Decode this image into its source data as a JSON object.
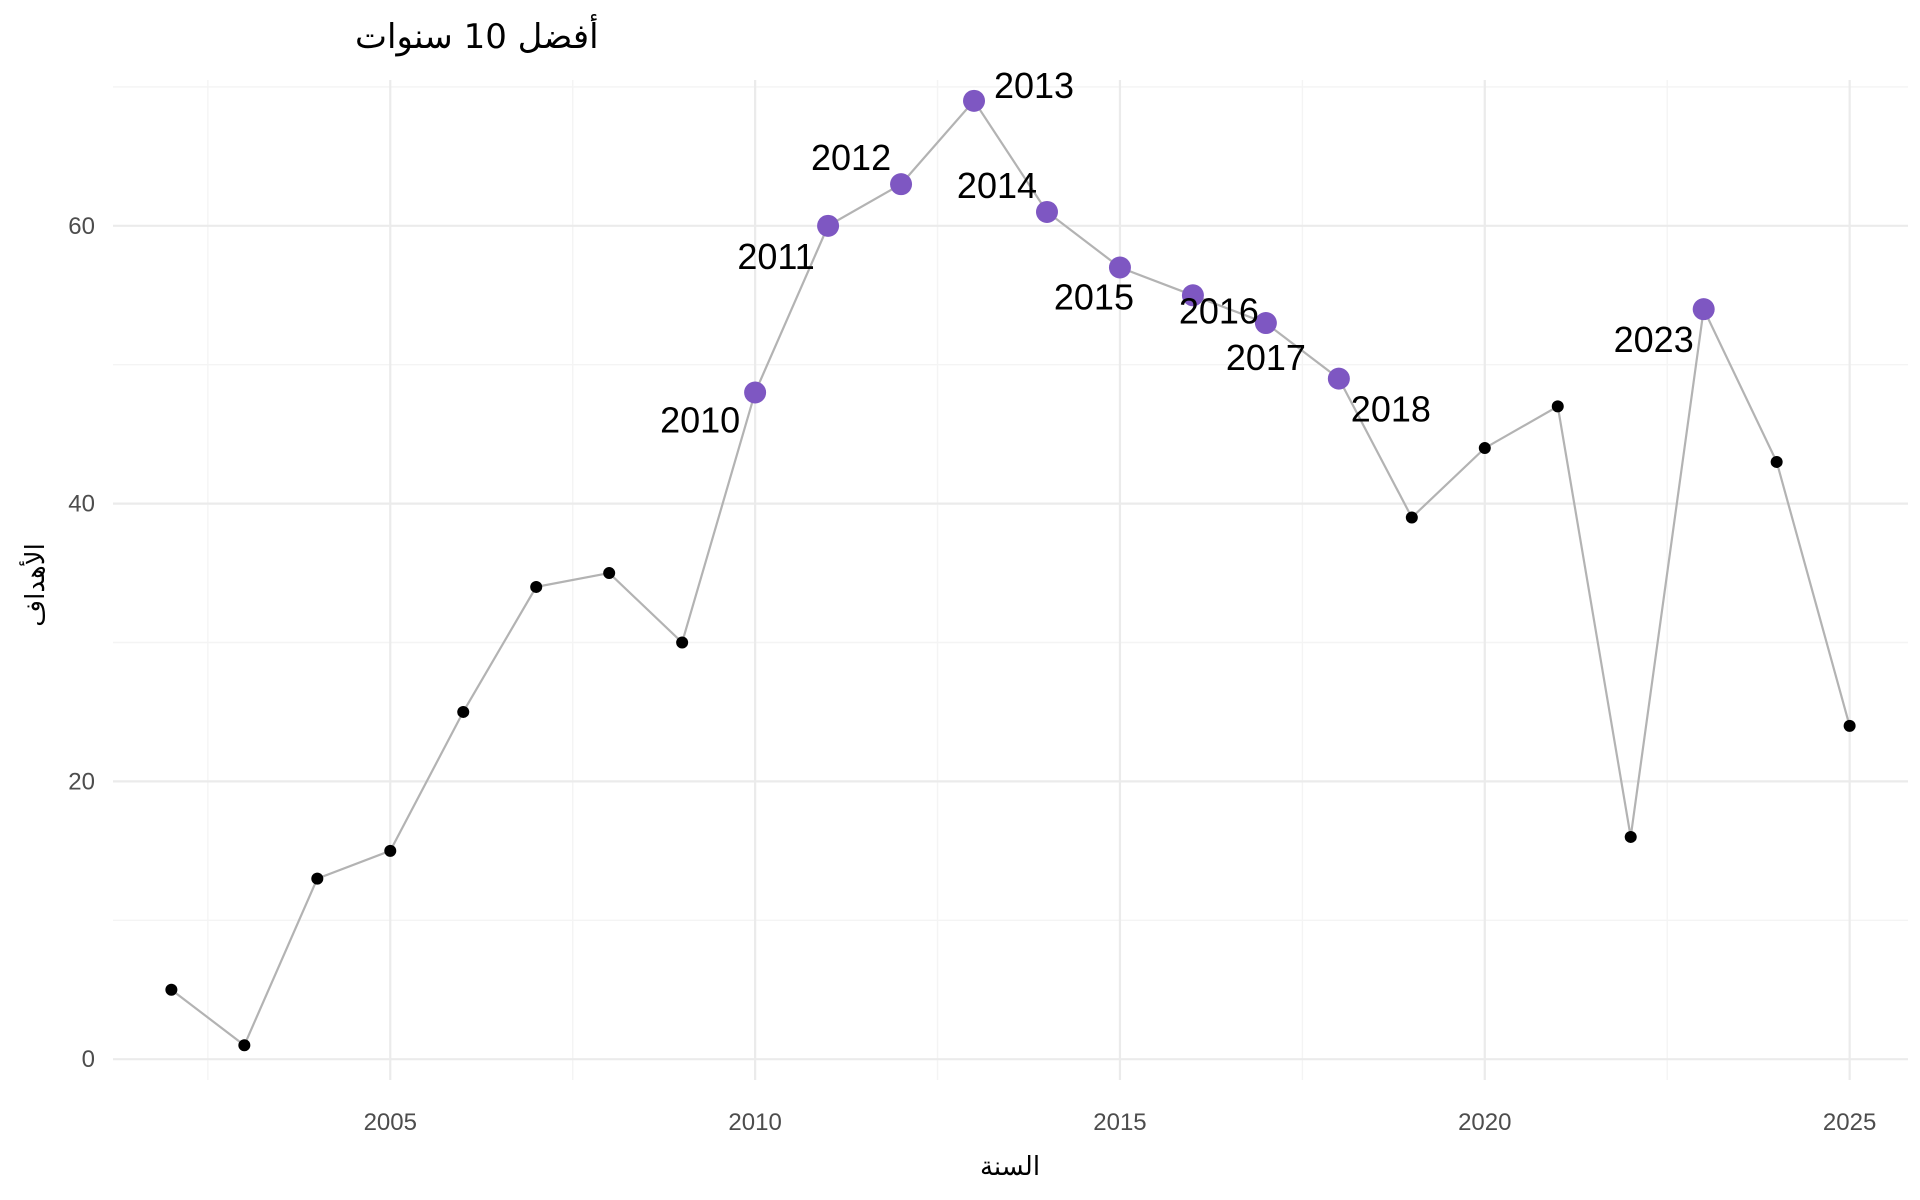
{
  "chart_data": {
    "type": "line",
    "title": "أفضل 10 سنوات",
    "xlabel": "السنة",
    "ylabel": "الأهداف",
    "xlim": [
      2001.2,
      2025.8
    ],
    "ylim": [
      -1.5,
      70.5
    ],
    "x_ticks": [
      2005,
      2010,
      2015,
      2020,
      2025
    ],
    "y_ticks": [
      0,
      20,
      40,
      60
    ],
    "grid": true,
    "series": [
      {
        "x": [
          2002,
          2003,
          2004,
          2005,
          2006,
          2007,
          2008,
          2009,
          2010,
          2011,
          2012,
          2013,
          2014,
          2015,
          2016,
          2017,
          2018,
          2019,
          2020,
          2021,
          2022,
          2023,
          2024,
          2025
        ],
        "y": [
          5,
          1,
          13,
          15,
          25,
          34,
          35,
          30,
          48,
          60,
          63,
          69,
          61,
          57,
          55,
          53,
          49,
          39,
          44,
          47,
          16,
          54,
          43,
          24
        ]
      }
    ],
    "highlighted": {
      "x": [
        2010,
        2011,
        2012,
        2013,
        2014,
        2015,
        2016,
        2017,
        2018,
        2023
      ],
      "labels": [
        "2010",
        "2011",
        "2012",
        "2013",
        "2014",
        "2015",
        "2016",
        "2017",
        "2018",
        "2023"
      ]
    },
    "colors": {
      "line": "#b3b3b3",
      "point": "#000000",
      "highlight": "#7e57c2"
    }
  }
}
